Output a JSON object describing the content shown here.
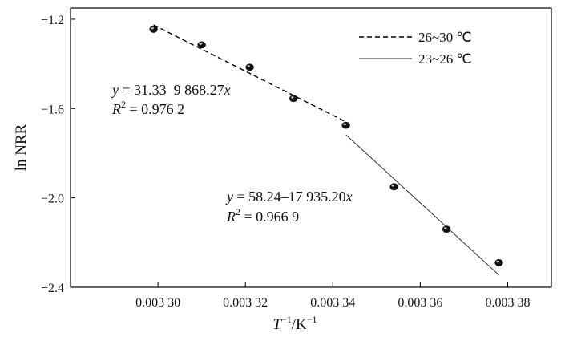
{
  "chart_data": {
    "type": "scatter",
    "title": "",
    "xlabel": {
      "base": "T",
      "sup1": "−1",
      "mid": "/K",
      "sup2": "−1"
    },
    "ylabel": "ln NRR",
    "xlim": [
      0.00328,
      0.00339
    ],
    "ylim": [
      -2.4,
      -1.15
    ],
    "x_ticks": [
      0.0033,
      0.00332,
      0.00334,
      0.00336,
      0.00338
    ],
    "x_tick_labels": [
      "0.003 30",
      "0.003 32",
      "0.003 34",
      "0.003 36",
      "0.003 38"
    ],
    "y_ticks": [
      -2.4,
      -2.0,
      -1.6,
      -1.2
    ],
    "y_tick_labels": [
      "−2.4",
      "−2.0",
      "−1.6",
      "−1.2"
    ],
    "points": [
      {
        "x": 0.003299,
        "y": -1.245
      },
      {
        "x": 0.00331,
        "y": -1.315
      },
      {
        "x": 0.003321,
        "y": -1.415
      },
      {
        "x": 0.003331,
        "y": -1.555
      },
      {
        "x": 0.003343,
        "y": -1.675
      },
      {
        "x": 0.003354,
        "y": -1.95
      },
      {
        "x": 0.003366,
        "y": -2.14
      },
      {
        "x": 0.003378,
        "y": -2.29
      }
    ],
    "series": [
      {
        "name": "26~30 ℃",
        "style": "dashed",
        "fit": {
          "intercept": 31.33,
          "slope": -9868.27
        },
        "x_range": [
          0.003299,
          0.003343
        ],
        "equation": {
          "y": "y",
          "rhs": " = 31.33–9 868.27",
          "x": "x",
          "r": "R",
          "r_sup": "2",
          "r_val": " = 0.976 2"
        }
      },
      {
        "name": "23~26 ℃",
        "style": "solid",
        "fit": {
          "intercept": 58.24,
          "slope": -17935.2
        },
        "x_range": [
          0.003343,
          0.003378
        ],
        "equation": {
          "y": "y",
          "rhs": " = 58.24–17 935.20",
          "x": "x",
          "r": "R",
          "r_sup": "2",
          "r_val": " = 0.966 9"
        }
      }
    ],
    "legend_position": "top-right",
    "grid": false
  }
}
